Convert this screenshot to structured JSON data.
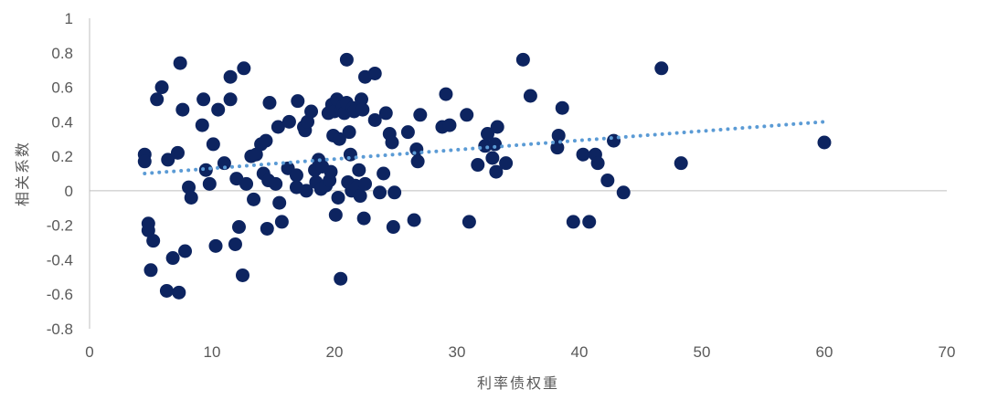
{
  "chart_data": {
    "type": "scatter",
    "xlabel": "利率债权重",
    "ylabel": "相关系数",
    "xlim": [
      0,
      70
    ],
    "ylim": [
      -0.8,
      1
    ],
    "xticks": [
      0,
      10,
      20,
      30,
      40,
      50,
      60,
      70
    ],
    "xtick_labels": [
      "0",
      "10",
      "20",
      "30",
      "40",
      "50",
      "60",
      "70"
    ],
    "yticks": [
      -0.8,
      -0.6,
      -0.4,
      -0.2,
      0,
      0.2,
      0.4,
      0.6,
      0.8,
      1
    ],
    "ytick_labels": [
      "-0.8",
      "-0.6",
      "-0.4",
      "-0.2",
      "0",
      "0.2",
      "0.4",
      "0.6",
      "0.8",
      "1"
    ],
    "grid": false,
    "legend": "none",
    "point_color": "#0d2460",
    "trendline": {
      "type": "linear",
      "style": "dotted",
      "color": "#5b9bd5",
      "x": [
        4.5,
        60
      ],
      "y": [
        0.1,
        0.4
      ]
    },
    "points": [
      [
        4.5,
        0.21
      ],
      [
        4.5,
        0.17
      ],
      [
        4.8,
        -0.19
      ],
      [
        4.8,
        -0.23
      ],
      [
        5.0,
        -0.46
      ],
      [
        5.2,
        -0.29
      ],
      [
        5.5,
        0.53
      ],
      [
        5.9,
        0.6
      ],
      [
        6.3,
        -0.58
      ],
      [
        6.4,
        0.18
      ],
      [
        6.8,
        -0.39
      ],
      [
        7.2,
        0.22
      ],
      [
        7.3,
        -0.59
      ],
      [
        7.4,
        0.74
      ],
      [
        7.6,
        0.47
      ],
      [
        7.8,
        -0.35
      ],
      [
        8.1,
        0.02
      ],
      [
        8.3,
        -0.04
      ],
      [
        9.2,
        0.38
      ],
      [
        9.3,
        0.53
      ],
      [
        9.5,
        0.12
      ],
      [
        9.8,
        0.04
      ],
      [
        10.1,
        0.27
      ],
      [
        10.3,
        -0.32
      ],
      [
        10.5,
        0.47
      ],
      [
        11.0,
        0.16
      ],
      [
        11.5,
        0.53
      ],
      [
        11.5,
        0.66
      ],
      [
        11.9,
        -0.31
      ],
      [
        12.0,
        0.07
      ],
      [
        12.2,
        -0.21
      ],
      [
        12.5,
        -0.49
      ],
      [
        12.6,
        0.71
      ],
      [
        12.8,
        0.04
      ],
      [
        13.2,
        0.2
      ],
      [
        13.4,
        -0.05
      ],
      [
        13.6,
        0.21
      ],
      [
        14.0,
        0.27
      ],
      [
        14.2,
        0.1
      ],
      [
        14.4,
        0.29
      ],
      [
        14.5,
        -0.22
      ],
      [
        14.6,
        0.06
      ],
      [
        14.7,
        0.51
      ],
      [
        15.2,
        0.04
      ],
      [
        15.4,
        0.37
      ],
      [
        15.5,
        -0.07
      ],
      [
        15.7,
        -0.18
      ],
      [
        16.2,
        0.13
      ],
      [
        16.3,
        0.4
      ],
      [
        16.9,
        0.09
      ],
      [
        16.9,
        0.02
      ],
      [
        17.0,
        0.52
      ],
      [
        17.5,
        0.37
      ],
      [
        17.6,
        0.35
      ],
      [
        17.7,
        0.0
      ],
      [
        17.8,
        0.4
      ],
      [
        18.1,
        0.46
      ],
      [
        18.4,
        0.12
      ],
      [
        18.5,
        0.05
      ],
      [
        18.7,
        0.18
      ],
      [
        18.9,
        0.01
      ],
      [
        19.0,
        0.14
      ],
      [
        19.3,
        0.03
      ],
      [
        19.5,
        0.45
      ],
      [
        19.6,
        0.06
      ],
      [
        19.7,
        0.11
      ],
      [
        19.8,
        0.5
      ],
      [
        19.9,
        0.32
      ],
      [
        20.0,
        0.46
      ],
      [
        20.1,
        -0.14
      ],
      [
        20.2,
        0.53
      ],
      [
        20.3,
        -0.04
      ],
      [
        20.4,
        0.3
      ],
      [
        20.5,
        -0.51
      ],
      [
        20.6,
        0.47
      ],
      [
        20.7,
        0.49
      ],
      [
        20.8,
        0.45
      ],
      [
        21.0,
        0.76
      ],
      [
        21.0,
        0.51
      ],
      [
        21.1,
        0.05
      ],
      [
        21.2,
        0.34
      ],
      [
        21.3,
        0.21
      ],
      [
        21.4,
        0.0
      ],
      [
        21.5,
        0.48
      ],
      [
        21.6,
        0.46
      ],
      [
        21.7,
        0.03
      ],
      [
        21.8,
        0.02
      ],
      [
        22.0,
        0.12
      ],
      [
        22.1,
        -0.03
      ],
      [
        22.2,
        0.53
      ],
      [
        22.3,
        0.47
      ],
      [
        22.4,
        -0.16
      ],
      [
        22.5,
        0.66
      ],
      [
        22.5,
        0.04
      ],
      [
        23.3,
        0.68
      ],
      [
        23.3,
        0.41
      ],
      [
        23.7,
        -0.01
      ],
      [
        24.0,
        0.1
      ],
      [
        24.2,
        0.45
      ],
      [
        24.5,
        0.33
      ],
      [
        24.7,
        0.28
      ],
      [
        24.8,
        -0.21
      ],
      [
        24.9,
        -0.01
      ],
      [
        26.0,
        0.34
      ],
      [
        26.5,
        -0.17
      ],
      [
        26.7,
        0.24
      ],
      [
        26.8,
        0.17
      ],
      [
        27.0,
        0.44
      ],
      [
        28.8,
        0.37
      ],
      [
        29.1,
        0.56
      ],
      [
        29.4,
        0.38
      ],
      [
        30.8,
        0.44
      ],
      [
        31.0,
        -0.18
      ],
      [
        31.7,
        0.15
      ],
      [
        32.3,
        0.26
      ],
      [
        32.5,
        0.33
      ],
      [
        32.9,
        0.19
      ],
      [
        33.1,
        0.27
      ],
      [
        33.2,
        0.11
      ],
      [
        33.3,
        0.37
      ],
      [
        34.0,
        0.16
      ],
      [
        35.4,
        0.76
      ],
      [
        36.0,
        0.55
      ],
      [
        38.2,
        0.25
      ],
      [
        38.3,
        0.32
      ],
      [
        38.6,
        0.48
      ],
      [
        39.5,
        -0.18
      ],
      [
        40.3,
        0.21
      ],
      [
        40.8,
        -0.18
      ],
      [
        41.3,
        0.21
      ],
      [
        41.5,
        0.16
      ],
      [
        42.3,
        0.06
      ],
      [
        42.8,
        0.29
      ],
      [
        43.6,
        -0.01
      ],
      [
        46.7,
        0.71
      ],
      [
        48.3,
        0.16
      ],
      [
        60.0,
        0.28
      ]
    ]
  }
}
